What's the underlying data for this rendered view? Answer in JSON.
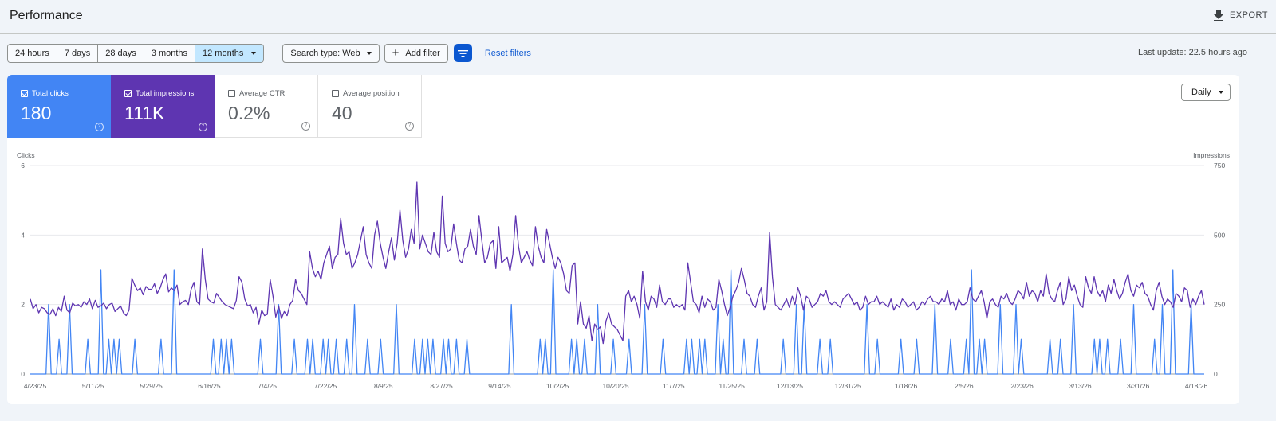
{
  "header": {
    "title": "Performance",
    "export_label": "EXPORT"
  },
  "filters": {
    "date_ranges": [
      "24 hours",
      "7 days",
      "28 days",
      "3 months",
      "12 months"
    ],
    "selected_range": "12 months",
    "search_type": "Search type: Web",
    "add_filter": "Add filter",
    "reset_filters": "Reset filters"
  },
  "last_update": "Last update: 22.5 hours ago",
  "metrics": {
    "clicks": {
      "label": "Total clicks",
      "value": "180",
      "checked": true,
      "color": "#4285f4"
    },
    "impressions": {
      "label": "Total impressions",
      "value": "111K",
      "checked": true,
      "color": "#5e35b1"
    },
    "ctr": {
      "label": "Average CTR",
      "value": "0.2%",
      "checked": false
    },
    "position": {
      "label": "Average position",
      "value": "40",
      "checked": false
    },
    "help_glyph": "?"
  },
  "granularity": "Daily",
  "chart_data": {
    "type": "line",
    "left_axis": {
      "label": "Clicks",
      "ticks": [
        0,
        2,
        4,
        6
      ],
      "range": [
        0,
        6
      ]
    },
    "right_axis": {
      "label": "Impressions",
      "ticks": [
        0,
        250,
        500,
        750
      ],
      "range": [
        0,
        750
      ]
    },
    "x_tick_labels": [
      "4/23/25",
      "5/11/25",
      "5/29/25",
      "6/16/25",
      "7/4/25",
      "7/22/25",
      "8/9/25",
      "8/27/25",
      "9/14/25",
      "10/2/25",
      "10/20/25",
      "11/7/25",
      "11/25/25",
      "12/13/25",
      "12/31/25",
      "1/18/26",
      "2/5/26",
      "2/23/26",
      "3/13/26",
      "3/31/26",
      "4/18/26"
    ],
    "grid": true,
    "series": [
      {
        "name": "Clicks",
        "axis": "left",
        "color": "#4285f4",
        "values": [
          0,
          0,
          0,
          0,
          0,
          0,
          0,
          2,
          0,
          0,
          0,
          1,
          0,
          0,
          0,
          2,
          0,
          0,
          0,
          0,
          0,
          0,
          1,
          0,
          0,
          0,
          0,
          3,
          0,
          0,
          1,
          0,
          1,
          0,
          1,
          0,
          0,
          0,
          0,
          0,
          1,
          0,
          0,
          0,
          0,
          0,
          0,
          0,
          0,
          0,
          1,
          0,
          0,
          0,
          0,
          3,
          0,
          0,
          0,
          0,
          0,
          0,
          0,
          0,
          0,
          0,
          0,
          0,
          0,
          0,
          1,
          0,
          0,
          1,
          0,
          1,
          0,
          1,
          0,
          0,
          0,
          0,
          0,
          0,
          0,
          0,
          0,
          0,
          1,
          0,
          0,
          0,
          0,
          0,
          0,
          2,
          0,
          0,
          0,
          0,
          0,
          1,
          0,
          0,
          0,
          0,
          1,
          0,
          1,
          0,
          0,
          0,
          1,
          0,
          1,
          0,
          0,
          1,
          0,
          0,
          0,
          1,
          0,
          0,
          2,
          0,
          0,
          0,
          0,
          1,
          0,
          0,
          0,
          0,
          1,
          0,
          0,
          0,
          0,
          0,
          2,
          0,
          0,
          0,
          0,
          0,
          0,
          1,
          0,
          0,
          1,
          0,
          1,
          0,
          1,
          0,
          0,
          0,
          1,
          0,
          1,
          0,
          0,
          1,
          0,
          0,
          0,
          1,
          0,
          0,
          0,
          0,
          0,
          0,
          0,
          0,
          0,
          0,
          0,
          0,
          0,
          0,
          0,
          0,
          2,
          0,
          0,
          0,
          0,
          0,
          0,
          0,
          0,
          0,
          0,
          1,
          0,
          1,
          0,
          0,
          3,
          0,
          0,
          0,
          0,
          0,
          0,
          1,
          0,
          1,
          0,
          0,
          1,
          0,
          0,
          0,
          0,
          2,
          0,
          0,
          0,
          0,
          0,
          1,
          0,
          0,
          0,
          0,
          0,
          1,
          0,
          0,
          0,
          0,
          0,
          2,
          0,
          0,
          0,
          0,
          0,
          0,
          1,
          0,
          0,
          0,
          0,
          0,
          0,
          0,
          0,
          1,
          0,
          1,
          0,
          0,
          1,
          0,
          1,
          0,
          0,
          0,
          0,
          2,
          0,
          1,
          0,
          0,
          3,
          0,
          0,
          0,
          0,
          1,
          0,
          0,
          0,
          0,
          1,
          0,
          0,
          0,
          0,
          0,
          0,
          0,
          0,
          0,
          1,
          0,
          0,
          0,
          0,
          2,
          0,
          0,
          2,
          0,
          0,
          0,
          0,
          0,
          1,
          0,
          0,
          0,
          1,
          0,
          0,
          0,
          0,
          0,
          0,
          0,
          0,
          0,
          0,
          0,
          0,
          0,
          2,
          0,
          0,
          0,
          1,
          0,
          0,
          0,
          0,
          0,
          0,
          0,
          0,
          1,
          0,
          0,
          0,
          0,
          0,
          1,
          0,
          0,
          0,
          0,
          0,
          0,
          2,
          0,
          0,
          0,
          0,
          0,
          1,
          0,
          0,
          0,
          0,
          0,
          1,
          0,
          3,
          0,
          0,
          1,
          0,
          1,
          0,
          0,
          0,
          0,
          0,
          2,
          0,
          0,
          0,
          0,
          0,
          2,
          0,
          1,
          0,
          0,
          0,
          0,
          0,
          0,
          0,
          0,
          0,
          0,
          1,
          0,
          0,
          0,
          1,
          0,
          0,
          0,
          0,
          2,
          0,
          0,
          0,
          0,
          0,
          0,
          0,
          1,
          0,
          1,
          0,
          0,
          1,
          0,
          0,
          0,
          0,
          1,
          0,
          0,
          0,
          0,
          2,
          0,
          0,
          0,
          0,
          0,
          0,
          0,
          1,
          0,
          0,
          2,
          0,
          0,
          0,
          3,
          0,
          0,
          0,
          0,
          0,
          0,
          2,
          0,
          0,
          0,
          0,
          0
        ]
      },
      {
        "name": "Impressions",
        "axis": "right",
        "color": "#5e35b1",
        "values": [
          270,
          235,
          250,
          220,
          240,
          235,
          220,
          215,
          235,
          210,
          240,
          225,
          280,
          230,
          220,
          255,
          245,
          250,
          240,
          260,
          250,
          270,
          235,
          265,
          240,
          245,
          255,
          235,
          250,
          255,
          225,
          235,
          245,
          220,
          210,
          230,
          345,
          320,
          300,
          310,
          285,
          315,
          305,
          305,
          325,
          290,
          310,
          340,
          360,
          295,
          310,
          300,
          320,
          250,
          260,
          265,
          250,
          305,
          330,
          260,
          250,
          450,
          340,
          270,
          260,
          255,
          290,
          275,
          260,
          250,
          245,
          240,
          235,
          265,
          350,
          330,
          270,
          245,
          250,
          220,
          240,
          180,
          230,
          210,
          215,
          340,
          280,
          205,
          245,
          200,
          225,
          210,
          250,
          265,
          340,
          300,
          290,
          270,
          250,
          440,
          380,
          350,
          370,
          340,
          400,
          430,
          460,
          380,
          420,
          430,
          560,
          470,
          430,
          440,
          380,
          400,
          430,
          480,
          530,
          430,
          400,
          380,
          500,
          550,
          470,
          420,
          380,
          440,
          490,
          410,
          470,
          590,
          480,
          420,
          450,
          520,
          470,
          690,
          450,
          500,
          470,
          440,
          430,
          510,
          440,
          420,
          640,
          470,
          440,
          450,
          540,
          470,
          410,
          400,
          450,
          460,
          520,
          460,
          430,
          570,
          480,
          400,
          420,
          470,
          480,
          380,
          530,
          400,
          410,
          420,
          370,
          430,
          570,
          460,
          400,
          420,
          440,
          410,
          390,
          530,
          460,
          420,
          400,
          520,
          470,
          420,
          380,
          420,
          400,
          360,
          300,
          290,
          390,
          400,
          180,
          260,
          180,
          165,
          210,
          120,
          180,
          160,
          170,
          110,
          190,
          220,
          180,
          170,
          160,
          140,
          120,
          280,
          300,
          260,
          280,
          250,
          200,
          370,
          260,
          230,
          280,
          270,
          240,
          320,
          260,
          250,
          270,
          270,
          240,
          250,
          240,
          250,
          230,
          400,
          330,
          260,
          250,
          220,
          280,
          240,
          270,
          260,
          230,
          240,
          340,
          300,
          250,
          210,
          240,
          280,
          300,
          330,
          380,
          340,
          290,
          280,
          250,
          240,
          280,
          310,
          230,
          260,
          510,
          350,
          250,
          240,
          230,
          250,
          270,
          240,
          280,
          250,
          310,
          280,
          230,
          280,
          270,
          240,
          250,
          260,
          290,
          280,
          300,
          260,
          250,
          260,
          250,
          240,
          270,
          280,
          290,
          270,
          250,
          260,
          230,
          240,
          280,
          250,
          260,
          260,
          280,
          250,
          260,
          250,
          240,
          270,
          230,
          250,
          240,
          270,
          260,
          240,
          250,
          260,
          230,
          240,
          260,
          250,
          270,
          280,
          260,
          260,
          250,
          270,
          260,
          300,
          250,
          260,
          230,
          270,
          250,
          250,
          260,
          310,
          270,
          260,
          280,
          300,
          260,
          200,
          260,
          270,
          250,
          240,
          280,
          270,
          290,
          260,
          250,
          270,
          300,
          290,
          270,
          330,
          280,
          300,
          290,
          260,
          300,
          280,
          360,
          290,
          270,
          260,
          300,
          330,
          250,
          270,
          350,
          300,
          320,
          280,
          250,
          240,
          350,
          310,
          290,
          350,
          300,
          280,
          300,
          260,
          320,
          290,
          340,
          300,
          270,
          290,
          330,
          360,
          300,
          280,
          320,
          310,
          330,
          290,
          280,
          250,
          230,
          300,
          330,
          280,
          250,
          270,
          260,
          240,
          290,
          280,
          260,
          310,
          300,
          240,
          270,
          250,
          280,
          300,
          250
        ]
      }
    ]
  }
}
